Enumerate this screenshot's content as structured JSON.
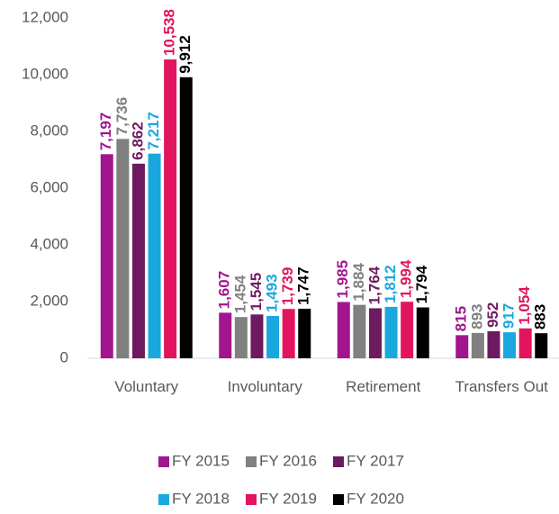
{
  "chart_data": {
    "type": "bar",
    "categories": [
      "Voluntary",
      "Involuntary",
      "Retirement",
      "Transfers Out"
    ],
    "series": [
      {
        "name": "FY 2015",
        "color": "#a1168f",
        "values": [
          7197,
          1607,
          1985,
          815
        ],
        "value_labels": [
          "7,197",
          "1,607",
          "1,985",
          "815"
        ]
      },
      {
        "name": "FY 2016",
        "color": "#808080",
        "values": [
          7736,
          1454,
          1884,
          893
        ],
        "value_labels": [
          "7,736",
          "1,454",
          "1,884",
          "893"
        ]
      },
      {
        "name": "FY 2017",
        "color": "#6e1a60",
        "values": [
          6862,
          1545,
          1764,
          952
        ],
        "value_labels": [
          "6,862",
          "1,545",
          "1,764",
          "952"
        ]
      },
      {
        "name": "FY 2018",
        "color": "#19a8de",
        "values": [
          7217,
          1493,
          1812,
          917
        ],
        "value_labels": [
          "7,217",
          "1,493",
          "1,812",
          "917"
        ]
      },
      {
        "name": "FY 2019",
        "color": "#e3145f",
        "values": [
          10538,
          1739,
          1994,
          1054
        ],
        "value_labels": [
          "10,538",
          "1,739",
          "1,994",
          "1,054"
        ]
      },
      {
        "name": "FY 2020",
        "color": "#000000",
        "values": [
          9912,
          1747,
          1794,
          883
        ],
        "value_labels": [
          "9,912",
          "1,747",
          "1,794",
          "883"
        ]
      }
    ],
    "ylim": [
      0,
      12000
    ],
    "yticks": [
      0,
      {
        "value": 2000,
        "label": "2,000"
      },
      {
        "value": 4000,
        "label": "4,000"
      },
      {
        "value": 6000,
        "label": "6,000"
      },
      {
        "value": 8000,
        "label": "8,000"
      },
      {
        "value": 10000,
        "label": "10,000"
      },
      {
        "value": 12000,
        "label": "12,000"
      }
    ],
    "grid": false,
    "legend": "bottom"
  }
}
